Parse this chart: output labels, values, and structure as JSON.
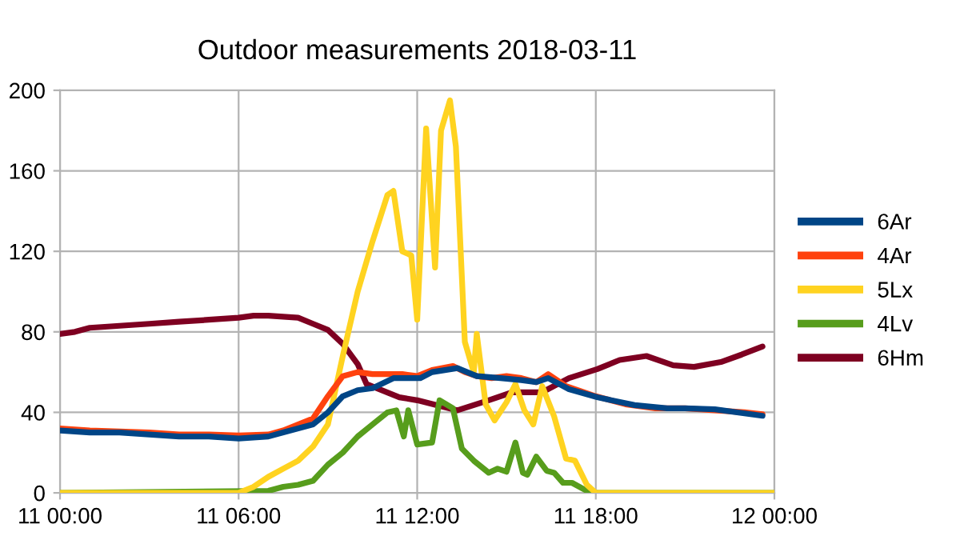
{
  "chart_data": {
    "type": "line",
    "title": "Outdoor measurements 2018-03-11",
    "xlim": [
      "2018-03-11T00:00",
      "2018-03-12T00:00"
    ],
    "xticks": [
      {
        "value": "2018-03-11T00:00",
        "label": "11 00:00"
      },
      {
        "value": "2018-03-11T06:00",
        "label": "11 06:00"
      },
      {
        "value": "2018-03-11T12:00",
        "label": "11 12:00"
      },
      {
        "value": "2018-03-11T18:00",
        "label": "11 18:00"
      },
      {
        "value": "2018-03-12T00:00",
        "label": "12 00:00"
      }
    ],
    "ylim": [
      0,
      200
    ],
    "yticks": [
      0,
      40,
      80,
      120,
      160,
      200
    ],
    "grid": true,
    "legend": "right",
    "marker": "none",
    "line_style": "solid",
    "series": [
      {
        "name": "6Ar",
        "color": "#004586",
        "x": [
          "2018-03-11T00:00",
          "2018-03-11T01:00",
          "2018-03-11T02:00",
          "2018-03-11T03:00",
          "2018-03-11T04:00",
          "2018-03-11T05:00",
          "2018-03-11T06:00",
          "2018-03-11T07:00",
          "2018-03-11T07:30",
          "2018-03-11T08:00",
          "2018-03-11T08:30",
          "2018-03-11T09:00",
          "2018-03-11T09:30",
          "2018-03-11T10:00",
          "2018-03-11T10:30",
          "2018-03-11T11:12",
          "2018-03-11T12:06",
          "2018-03-11T12:30",
          "2018-03-11T13:21",
          "2018-03-11T14:00",
          "2018-03-11T14:48",
          "2018-03-11T15:30",
          "2018-03-11T16:00",
          "2018-03-11T16:24",
          "2018-03-11T17:06",
          "2018-03-11T18:03",
          "2018-03-11T19:18",
          "2018-03-11T20:24",
          "2018-03-11T21:00",
          "2018-03-11T22:00",
          "2018-03-11T23:36"
        ],
        "values": [
          31,
          30,
          30,
          29,
          28,
          28,
          27,
          28,
          30,
          32,
          34,
          40,
          48,
          51,
          52,
          57,
          57,
          60,
          62,
          58,
          57,
          56,
          55,
          57,
          51.5,
          47.5,
          43.6,
          42,
          42,
          41.5,
          38.3
        ]
      },
      {
        "name": "4Ar",
        "color": "#ff420e",
        "x": [
          "2018-03-11T00:00",
          "2018-03-11T01:00",
          "2018-03-11T02:00",
          "2018-03-11T03:00",
          "2018-03-11T04:00",
          "2018-03-11T05:00",
          "2018-03-11T06:00",
          "2018-03-11T07:00",
          "2018-03-11T07:30",
          "2018-03-11T08:00",
          "2018-03-11T08:30",
          "2018-03-11T09:00",
          "2018-03-11T09:30",
          "2018-03-11T10:00",
          "2018-03-11T10:30",
          "2018-03-11T11:00",
          "2018-03-11T11:30",
          "2018-03-11T12:00",
          "2018-03-11T12:30",
          "2018-03-11T13:12",
          "2018-03-11T13:36",
          "2018-03-11T14:00",
          "2018-03-11T14:30",
          "2018-03-11T15:00",
          "2018-03-11T15:30",
          "2018-03-11T16:00",
          "2018-03-11T16:24",
          "2018-03-11T17:00",
          "2018-03-11T18:00",
          "2018-03-11T19:00",
          "2018-03-11T20:00",
          "2018-03-11T21:00",
          "2018-03-11T22:00",
          "2018-03-11T23:00",
          "2018-03-11T23:36"
        ],
        "values": [
          32,
          31,
          30.5,
          30,
          29,
          29,
          28.5,
          29,
          31,
          34,
          37,
          48,
          58,
          60,
          59,
          59,
          59,
          58,
          61,
          63,
          60,
          58,
          57,
          58,
          57,
          55,
          59,
          53,
          48,
          44,
          42,
          42,
          41,
          40,
          39
        ]
      },
      {
        "name": "5Lx",
        "color": "#ffd320",
        "x": [
          "2018-03-11T00:00",
          "2018-03-11T06:00",
          "2018-03-11T06:30",
          "2018-03-11T07:00",
          "2018-03-11T07:30",
          "2018-03-11T08:00",
          "2018-03-11T08:30",
          "2018-03-11T09:00",
          "2018-03-11T09:30",
          "2018-03-11T10:00",
          "2018-03-11T10:30",
          "2018-03-11T11:00",
          "2018-03-11T11:12",
          "2018-03-11T11:30",
          "2018-03-11T11:48",
          "2018-03-11T12:00",
          "2018-03-11T12:18",
          "2018-03-11T12:36",
          "2018-03-11T12:48",
          "2018-03-11T13:06",
          "2018-03-11T13:18",
          "2018-03-11T13:36",
          "2018-03-11T13:54",
          "2018-03-11T14:00",
          "2018-03-11T14:18",
          "2018-03-11T14:36",
          "2018-03-11T15:00",
          "2018-03-11T15:18",
          "2018-03-11T15:36",
          "2018-03-11T15:54",
          "2018-03-11T16:12",
          "2018-03-11T16:36",
          "2018-03-11T17:00",
          "2018-03-11T17:18",
          "2018-03-11T17:42",
          "2018-03-11T18:00",
          "2018-03-12T00:00"
        ],
        "values": [
          0,
          0,
          3,
          8,
          12,
          16,
          23,
          34,
          68,
          100,
          125,
          148,
          150,
          120,
          118,
          86,
          181,
          112,
          180,
          195,
          172,
          75,
          60,
          79,
          44,
          36,
          45,
          54,
          41,
          34,
          53,
          38,
          17,
          16,
          4,
          0,
          0
        ]
      },
      {
        "name": "4Lv",
        "color": "#579d1c",
        "x": [
          "2018-03-11T00:00",
          "2018-03-11T07:00",
          "2018-03-11T07:30",
          "2018-03-11T08:00",
          "2018-03-11T08:30",
          "2018-03-11T09:00",
          "2018-03-11T09:30",
          "2018-03-11T10:00",
          "2018-03-11T10:30",
          "2018-03-11T11:00",
          "2018-03-11T11:18",
          "2018-03-11T11:33",
          "2018-03-11T11:42",
          "2018-03-11T12:00",
          "2018-03-11T12:30",
          "2018-03-11T12:45",
          "2018-03-11T13:12",
          "2018-03-11T13:30",
          "2018-03-11T13:54",
          "2018-03-11T14:24",
          "2018-03-11T14:42",
          "2018-03-11T15:00",
          "2018-03-11T15:18",
          "2018-03-11T15:33",
          "2018-03-11T15:42",
          "2018-03-11T16:00",
          "2018-03-11T16:21",
          "2018-03-11T16:36",
          "2018-03-11T16:54",
          "2018-03-11T17:12",
          "2018-03-11T17:42",
          "2018-03-11T18:03",
          "2018-03-12T00:00"
        ],
        "values": [
          0,
          1,
          3,
          4,
          6,
          14,
          20,
          28,
          34,
          40,
          41,
          28,
          41,
          24,
          25,
          46,
          42,
          22,
          16,
          10,
          12,
          10.5,
          25,
          10,
          9,
          18,
          11,
          10,
          5,
          5,
          1,
          0,
          0
        ]
      },
      {
        "name": "6Hm",
        "color": "#7e0021",
        "x": [
          "2018-03-11T00:00",
          "2018-03-11T00:30",
          "2018-03-11T01:00",
          "2018-03-11T02:00",
          "2018-03-11T03:00",
          "2018-03-11T04:00",
          "2018-03-11T05:00",
          "2018-03-11T06:00",
          "2018-03-11T06:30",
          "2018-03-11T07:00",
          "2018-03-11T08:00",
          "2018-03-11T08:30",
          "2018-03-11T09:00",
          "2018-03-11T09:30",
          "2018-03-11T10:00",
          "2018-03-11T10:18",
          "2018-03-11T11:24",
          "2018-03-11T12:00",
          "2018-03-11T13:21",
          "2018-03-11T14:24",
          "2018-03-11T15:12",
          "2018-03-11T16:12",
          "2018-03-11T17:06",
          "2018-03-11T18:03",
          "2018-03-11T18:48",
          "2018-03-11T19:42",
          "2018-03-11T20:36",
          "2018-03-11T21:18",
          "2018-03-11T22:12",
          "2018-03-11T22:54",
          "2018-03-11T23:36"
        ],
        "values": [
          79,
          80,
          82,
          83,
          84,
          85,
          86,
          87,
          88,
          88,
          87,
          84,
          81,
          74,
          64,
          54,
          47.5,
          46,
          41,
          46,
          50,
          50,
          57,
          61.5,
          66,
          68,
          63.4,
          62.6,
          65,
          68.7,
          72.7
        ]
      }
    ]
  }
}
